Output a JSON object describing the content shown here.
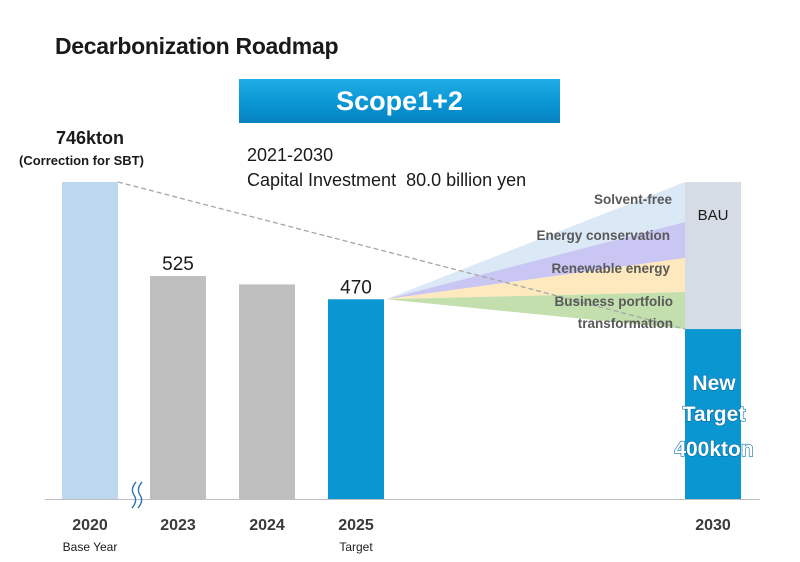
{
  "title": "Decarbonization Roadmap",
  "scope_label": "Scope1+2",
  "base_annotation": {
    "value": "746kton",
    "note": "(Correction for SBT)"
  },
  "investment": {
    "period": "2021-2030",
    "text": "Capital Investment  80.0 billion yen"
  },
  "colors": {
    "base_bar": "#bdd7ee",
    "actual_bar": "#bfbfbf",
    "target_bar": "#0a96d1",
    "bau_box": "#d6dce5",
    "lever_solvent": "#dbe9f7",
    "lever_energy": "#c9c6f3",
    "lever_renewable": "#fde9bd",
    "lever_portfolio": "#c3dfae"
  },
  "chart_data": {
    "type": "bar",
    "title": "Decarbonization Roadmap",
    "unit": "kton",
    "categories": [
      "2020",
      "2023",
      "2024",
      "2025",
      "2030"
    ],
    "category_sublabels": [
      "Base Year",
      "",
      "",
      "Target",
      ""
    ],
    "values": [
      746,
      525,
      505,
      470,
      400
    ],
    "value_labels": [
      "",
      "525",
      "",
      "470",
      ""
    ],
    "bar_roles": [
      "base",
      "actual",
      "actual",
      "target",
      "target"
    ],
    "axis_break_after": "2020",
    "ylim": [
      0,
      746
    ],
    "trend_line": {
      "from": "2020",
      "to": "2030",
      "from_value": 746,
      "to_value": 400,
      "style": "dashed"
    },
    "bau_2030": {
      "label": "BAU",
      "value": 746
    },
    "target_2030": {
      "lines": [
        "New",
        "Target",
        "400kton"
      ]
    },
    "reduction_levers": [
      "Solvent-free",
      "Energy conservation",
      "Renewable energy",
      "Business portfolio transformation"
    ],
    "reduction_lever_lines": [
      [
        "Solvent-free"
      ],
      [
        "Energy conservation"
      ],
      [
        "Renewable energy"
      ],
      [
        "Business portfolio",
        "transformation"
      ]
    ]
  }
}
